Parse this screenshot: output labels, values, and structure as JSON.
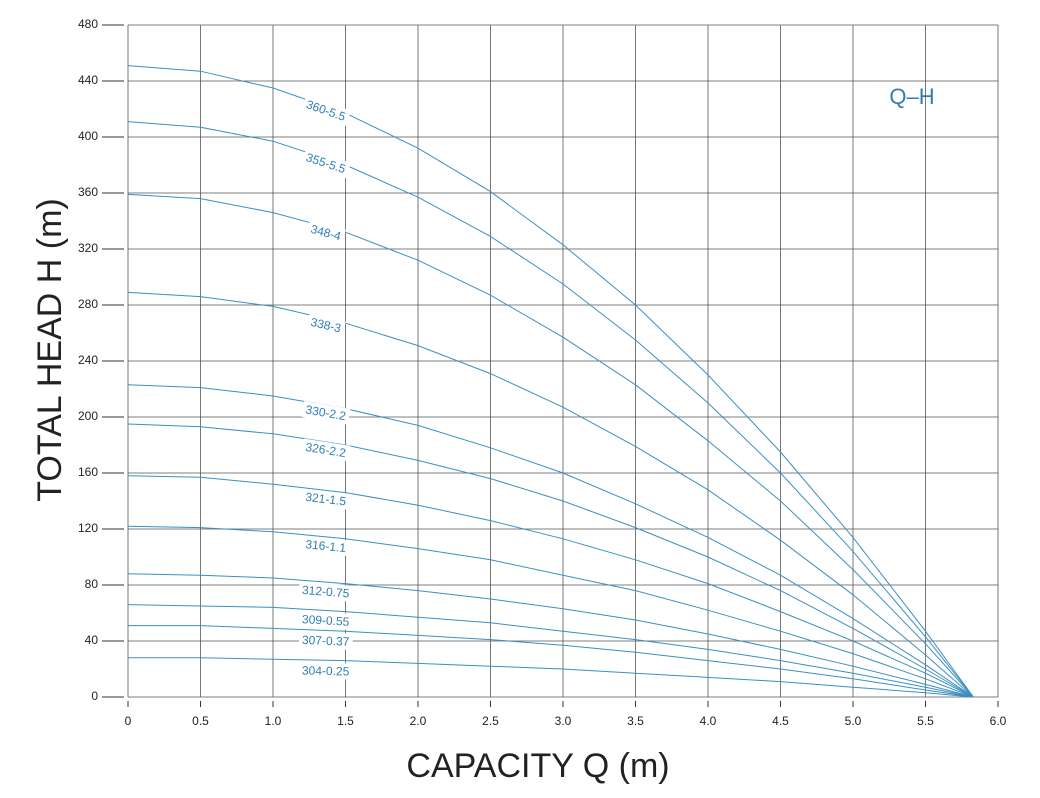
{
  "chart_data": {
    "type": "line",
    "title": "Q–H",
    "x_label": "CAPACITY Q (m)",
    "y_label": "TOTAL HEAD H (m)",
    "x": [
      0,
      0.5,
      1.0,
      1.5,
      2.0,
      2.5,
      3.0,
      3.5,
      4.0,
      4.5,
      5.0,
      5.5,
      5.83
    ],
    "series": [
      {
        "name": "360-5.5",
        "color": "#3b8fc2",
        "values": [
          451,
          447,
          435,
          417,
          392,
          361,
          323,
          280,
          230,
          175,
          114,
          47,
          0
        ]
      },
      {
        "name": "355-5.5",
        "color": "#3b8fc2",
        "values": [
          411,
          407,
          397,
          380,
          357,
          329,
          295,
          255,
          210,
          160,
          104,
          43,
          0
        ]
      },
      {
        "name": "348-4",
        "color": "#3b8fc2",
        "values": [
          359,
          356,
          346,
          332,
          312,
          287,
          257,
          223,
          183,
          140,
          91,
          38,
          0
        ]
      },
      {
        "name": "338-3",
        "color": "#3b8fc2",
        "values": [
          289,
          286,
          279,
          267,
          251,
          231,
          207,
          179,
          148,
          112,
          73,
          30,
          0
        ]
      },
      {
        "name": "330-2.2",
        "color": "#3b8fc2",
        "values": [
          223,
          221,
          215,
          206,
          194,
          178,
          160,
          138,
          114,
          87,
          56,
          23,
          0
        ]
      },
      {
        "name": "326-2.2",
        "color": "#3b8fc2",
        "values": [
          195,
          193,
          188,
          180,
          169,
          156,
          140,
          121,
          100,
          76,
          49,
          20,
          0
        ]
      },
      {
        "name": "321-1.5",
        "color": "#3b8fc2",
        "values": [
          158,
          157,
          152,
          146,
          137,
          126,
          113,
          98,
          81,
          61,
          40,
          17,
          0
        ]
      },
      {
        "name": "316-1.1",
        "color": "#3b8fc2",
        "values": [
          122,
          121,
          118,
          113,
          106,
          98,
          87,
          76,
          62,
          47,
          31,
          13,
          0
        ]
      },
      {
        "name": "312-0.75",
        "color": "#3b8fc2",
        "values": [
          88,
          87,
          85,
          81,
          76,
          70,
          63,
          55,
          45,
          34,
          22,
          9,
          0
        ]
      },
      {
        "name": "309-0.55",
        "color": "#3b8fc2",
        "values": [
          66,
          65,
          64,
          61,
          57,
          53,
          47,
          41,
          34,
          26,
          17,
          7,
          0
        ]
      },
      {
        "name": "307-0.37",
        "color": "#3b8fc2",
        "values": [
          51,
          51,
          49,
          47,
          44,
          41,
          37,
          32,
          26,
          20,
          13,
          5,
          0
        ]
      },
      {
        "name": "304-0.25",
        "color": "#3b8fc2",
        "values": [
          28,
          28,
          27,
          26,
          24,
          22,
          20,
          17,
          14,
          11,
          7,
          3,
          0
        ]
      }
    ],
    "xlim": [
      0,
      6
    ],
    "xticks": [
      0,
      0.5,
      {
        "value": 1,
        "label": "1.0"
      },
      1.5,
      {
        "value": 2,
        "label": "2.0"
      },
      2.5,
      {
        "value": 3,
        "label": "3.0"
      },
      3.5,
      {
        "value": 4,
        "label": "4.0"
      },
      4.5,
      {
        "value": 5,
        "label": "5.0"
      },
      5.5,
      {
        "value": 6,
        "label": "6.0"
      }
    ],
    "ylim": [
      0,
      480
    ],
    "yticks": [
      0,
      40,
      80,
      120,
      160,
      200,
      240,
      280,
      320,
      360,
      400,
      440,
      480
    ],
    "grid": true
  }
}
